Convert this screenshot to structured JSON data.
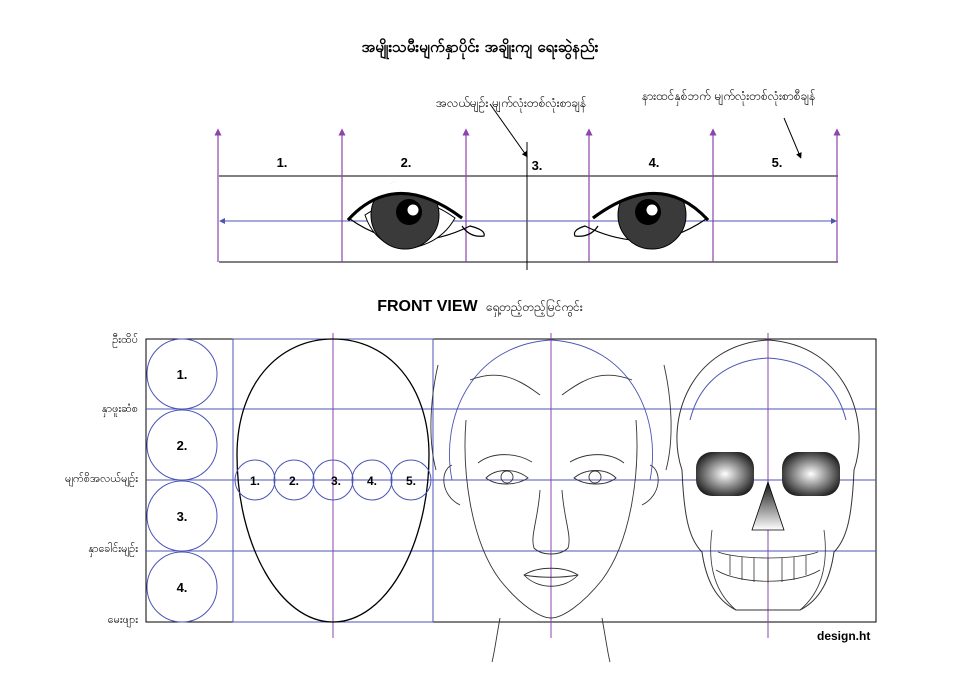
{
  "title": "အမျိုးသမီးမျက်နှာပိုင်း အချိုးကျ ရေးဆွဲနည်း",
  "annotations": {
    "center_line_note": "အလယ်မျဉ်း မျက်လုံးတစ်လုံးစာချန်",
    "side_space_note": "နားထင်နှစ်ဘက် မျက်လုံးတစ်လုံးစာစီချန်"
  },
  "eye_spacing": {
    "segments": [
      "1.",
      "2.",
      "3.",
      "4.",
      "5."
    ]
  },
  "front_view": {
    "heading": "FRONT VIEW",
    "heading_suffix": "ရှေ့တည့်တည့်မြင်ကွင်း",
    "row_labels": [
      "ဦးထိပ်",
      "နှာဖူးဆံစ",
      "မျက်စိအလယ်မျဉ်း",
      "နှာခေါင်းမျဉ်း",
      "မေးဖျား"
    ],
    "head_circles": [
      "1.",
      "2.",
      "3.",
      "4."
    ],
    "eye_circles": [
      "1.",
      "2.",
      "3.",
      "4.",
      "5."
    ]
  },
  "credit": "design.ht",
  "colors": {
    "guide_purple": "#8e44ad",
    "guide_blue": "#4b55b5",
    "line": "#000000"
  }
}
